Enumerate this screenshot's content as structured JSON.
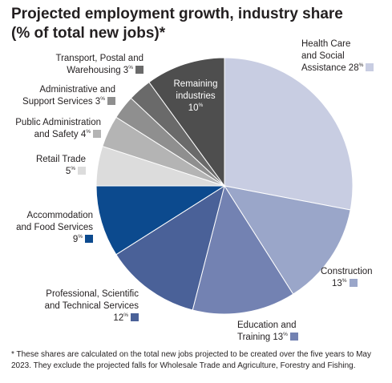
{
  "title_line1": "Projected employment growth, industry share",
  "title_line2": "(% of total new jobs)*",
  "footnote": "* These shares are calculated on the total new jobs projected to be created over the five years to May 2023. They exclude the projected falls for Wholesale Trade and Agriculture, Forestry and Fishing.",
  "chart_data": {
    "type": "pie",
    "title": "Projected employment growth, industry share (% of total new jobs)*",
    "unit": "%",
    "slices": [
      {
        "label_lines": [
          "Health Care",
          "and Social",
          "Assistance 28"
        ],
        "value": 28,
        "color": "#c8cde2"
      },
      {
        "label_lines": [
          "Construction",
          "13"
        ],
        "value": 13,
        "color": "#9aa6c9"
      },
      {
        "label_lines": [
          "Education and",
          "Training 13"
        ],
        "value": 13,
        "color": "#7382b2"
      },
      {
        "label_lines": [
          "Professional, Scientific",
          "and Technical Services",
          "12"
        ],
        "value": 12,
        "color": "#4a6198"
      },
      {
        "label_lines": [
          "Accommodation",
          "and Food Services",
          "9"
        ],
        "value": 9,
        "color": "#0c4a8e"
      },
      {
        "label_lines": [
          "Retail Trade",
          "5"
        ],
        "value": 5,
        "color": "#dcdcdc"
      },
      {
        "label_lines": [
          "Public Administration",
          "and Safety 4"
        ],
        "value": 4,
        "color": "#b4b4b4"
      },
      {
        "label_lines": [
          "Administrative and",
          "Support Services 3"
        ],
        "value": 3,
        "color": "#8f8f8f"
      },
      {
        "label_lines": [
          "Transport, Postal and",
          "Warehousing 3"
        ],
        "value": 3,
        "color": "#6a6a6a"
      },
      {
        "label_lines": [
          "Remaining",
          "industries",
          "10"
        ],
        "value": 10,
        "color": "#4e4e4e"
      }
    ]
  }
}
